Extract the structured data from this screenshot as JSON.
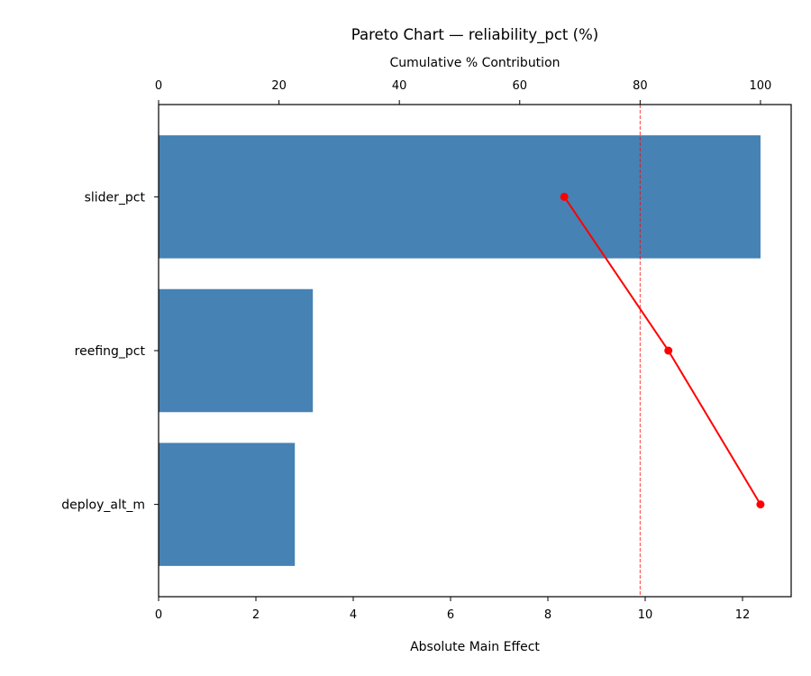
{
  "chart_data": {
    "type": "bar",
    "orientation": "horizontal",
    "title": "Pareto Chart — reliability_pct (%)",
    "xlabel": "Absolute Main Effect",
    "x2label": "Cumulative % Contribution",
    "categories": [
      "slider_pct",
      "reefing_pct",
      "deploy_alt_m"
    ],
    "values": [
      12.37,
      3.17,
      2.8
    ],
    "cumulative_pct": [
      67.4,
      84.7,
      100.0
    ],
    "threshold_pct": 80,
    "xlim": [
      0,
      13.0
    ],
    "x2lim": [
      0,
      105.1
    ],
    "xticks": [
      0,
      2,
      4,
      6,
      8,
      10,
      12
    ],
    "x2ticks": [
      0,
      20,
      40,
      60,
      80,
      100
    ],
    "grid": false,
    "colors": {
      "bar": "#4682b4",
      "cumulative": "#ff0000",
      "threshold": "#ff0000"
    }
  }
}
